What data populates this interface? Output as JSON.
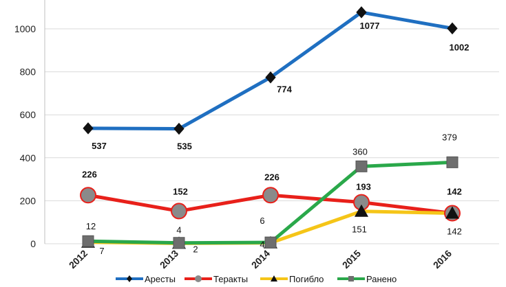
{
  "chart_data": {
    "type": "line",
    "title": "",
    "xlabel": "",
    "ylabel": "",
    "categories": [
      "2012",
      "2013",
      "2014",
      "2015",
      "2016"
    ],
    "yticks": [
      0,
      200,
      400,
      600,
      800,
      1000
    ],
    "ylim": [
      0,
      1100
    ],
    "grid": true,
    "legend_position": "bottom",
    "series": [
      {
        "name": "Аресты",
        "values": [
          537,
          535,
          774,
          1077,
          1002
        ],
        "labels": [
          "537",
          "535",
          "774",
          "1077",
          "1002"
        ],
        "color": "#1f6fc1",
        "marker": "diamond",
        "label_bold": true
      },
      {
        "name": "Теракты",
        "values": [
          226,
          152,
          226,
          193,
          142
        ],
        "labels": [
          "226",
          "152",
          "226",
          "193",
          "142"
        ],
        "color": "#e8201a",
        "marker": "circle",
        "label_bold": true
      },
      {
        "name": "Погибло",
        "values": [
          7,
          2,
          4,
          151,
          142
        ],
        "labels": [
          "7",
          "2",
          "4",
          "151",
          "142"
        ],
        "color": "#f5c518",
        "marker": "triangle",
        "label_bold": false
      },
      {
        "name": "Ранено",
        "values": [
          12,
          4,
          6,
          360,
          379
        ],
        "labels": [
          "12",
          "4",
          "6",
          "360",
          "379"
        ],
        "color": "#2aa84a",
        "marker": "square",
        "label_bold": false
      }
    ]
  }
}
